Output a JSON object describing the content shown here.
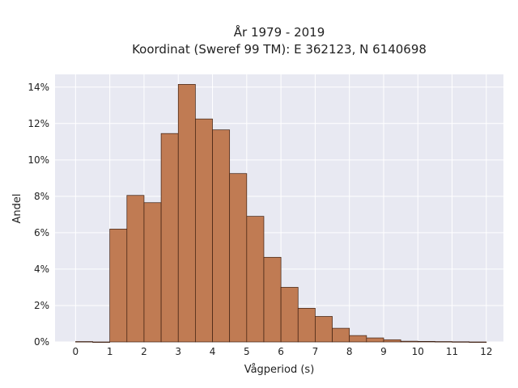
{
  "chart_data": {
    "type": "bar",
    "title_line1": "År 1979 - 2019",
    "title_line2": "Koordinat (Sweref 99 TM): E 362123, N 6140698",
    "xlabel": "Vågperiod (s)",
    "ylabel": "Andel",
    "bin_width": 0.5,
    "bin_starts": [
      0,
      0.5,
      1,
      1.5,
      2,
      2.5,
      3,
      3.5,
      4,
      4.5,
      5,
      5.5,
      6,
      6.5,
      7,
      7.5,
      8,
      8.5,
      9,
      9.5,
      10,
      10.5,
      11,
      11.5
    ],
    "values": [
      0.02,
      0,
      6.2,
      8.05,
      7.65,
      11.45,
      14.15,
      12.25,
      11.65,
      9.25,
      6.9,
      4.65,
      3.0,
      1.85,
      1.4,
      0.75,
      0.35,
      0.22,
      0.12,
      0.04,
      0.03,
      0.02,
      0.01,
      0
    ],
    "xlim": [
      -0.6,
      12.5
    ],
    "ylim": [
      0,
      14.7
    ],
    "x_ticks": [
      0,
      1,
      2,
      3,
      4,
      5,
      6,
      7,
      8,
      9,
      10,
      11,
      12
    ],
    "y_ticks": [
      0,
      2,
      4,
      6,
      8,
      10,
      12,
      14
    ],
    "y_tick_suffix": "%",
    "grid": true,
    "bar_color": "#c07b53",
    "bar_edge_color": "#3d1f10",
    "plot_background": "#e8e9f2",
    "grid_color": "#ffffff"
  }
}
